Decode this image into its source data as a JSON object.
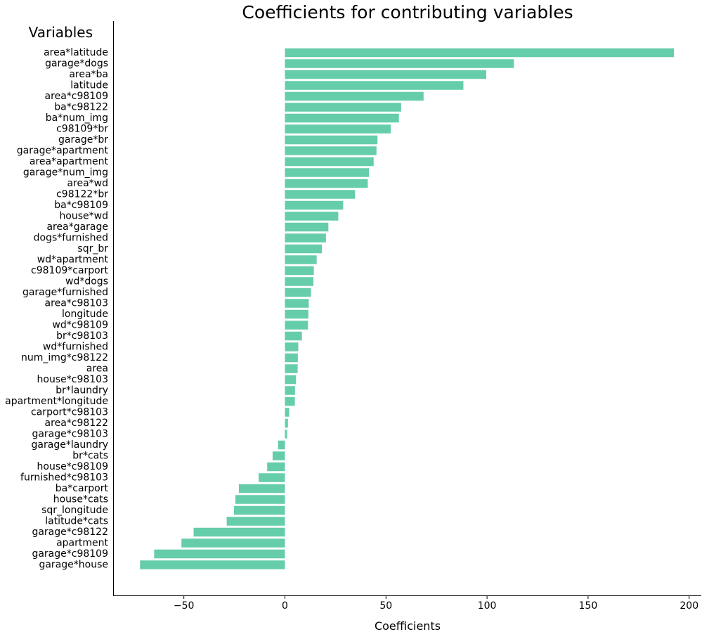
{
  "chart_data": {
    "type": "bar",
    "orientation": "horizontal",
    "title": "Coefficients for contributing variables",
    "xlabel": "Coefficients",
    "ylabel": "Variables",
    "xlim": [
      -85,
      206
    ],
    "xticks": [
      -50,
      0,
      50,
      100,
      150,
      200
    ],
    "xtick_labels": [
      "−50",
      "0",
      "50",
      "100",
      "150",
      "200"
    ],
    "grid": false,
    "bar_color": "#66CDAA",
    "categories": [
      "area*latitude",
      "garage*dogs",
      "area*ba",
      "latitude",
      "area*c98109",
      "ba*c98122",
      "ba*num_img",
      "c98109*br",
      "garage*br",
      "garage*apartment",
      "area*apartment",
      "garage*num_img",
      "area*wd",
      "c98122*br",
      "ba*c98109",
      "house*wd",
      "area*garage",
      "dogs*furnished",
      "sqr_br",
      "wd*apartment",
      "c98109*carport",
      "wd*dogs",
      "garage*furnished",
      "area*c98103",
      "longitude",
      "wd*c98109",
      "br*c98103",
      "wd*furnished",
      "num_img*c98122",
      "area",
      "house*c98103",
      "br*laundry",
      "apartment*longitude",
      "carport*c98103",
      "area*c98122",
      "garage*c98103",
      "garage*laundry",
      "br*cats",
      "house*c98109",
      "furnished*c98103",
      "ba*carport",
      "house*cats",
      "sqr_longitude",
      "latitude*cats",
      "garage*c98122",
      "apartment",
      "garage*c98109",
      "garage*house"
    ],
    "values": [
      192.5,
      113.3,
      99.6,
      88.3,
      68.6,
      57.5,
      56.4,
      52.4,
      45.8,
      45.3,
      43.9,
      41.6,
      41.0,
      34.7,
      28.8,
      26.4,
      21.5,
      20.3,
      18.3,
      15.7,
      14.3,
      14.1,
      12.9,
      11.8,
      11.6,
      11.4,
      8.4,
      6.6,
      6.4,
      6.3,
      5.5,
      5.0,
      4.9,
      2.1,
      1.5,
      1.1,
      -3.4,
      -6.1,
      -8.8,
      -13.0,
      -22.8,
      -24.5,
      -25.2,
      -28.8,
      -45.2,
      -51.2,
      -64.7,
      -71.7
    ]
  }
}
